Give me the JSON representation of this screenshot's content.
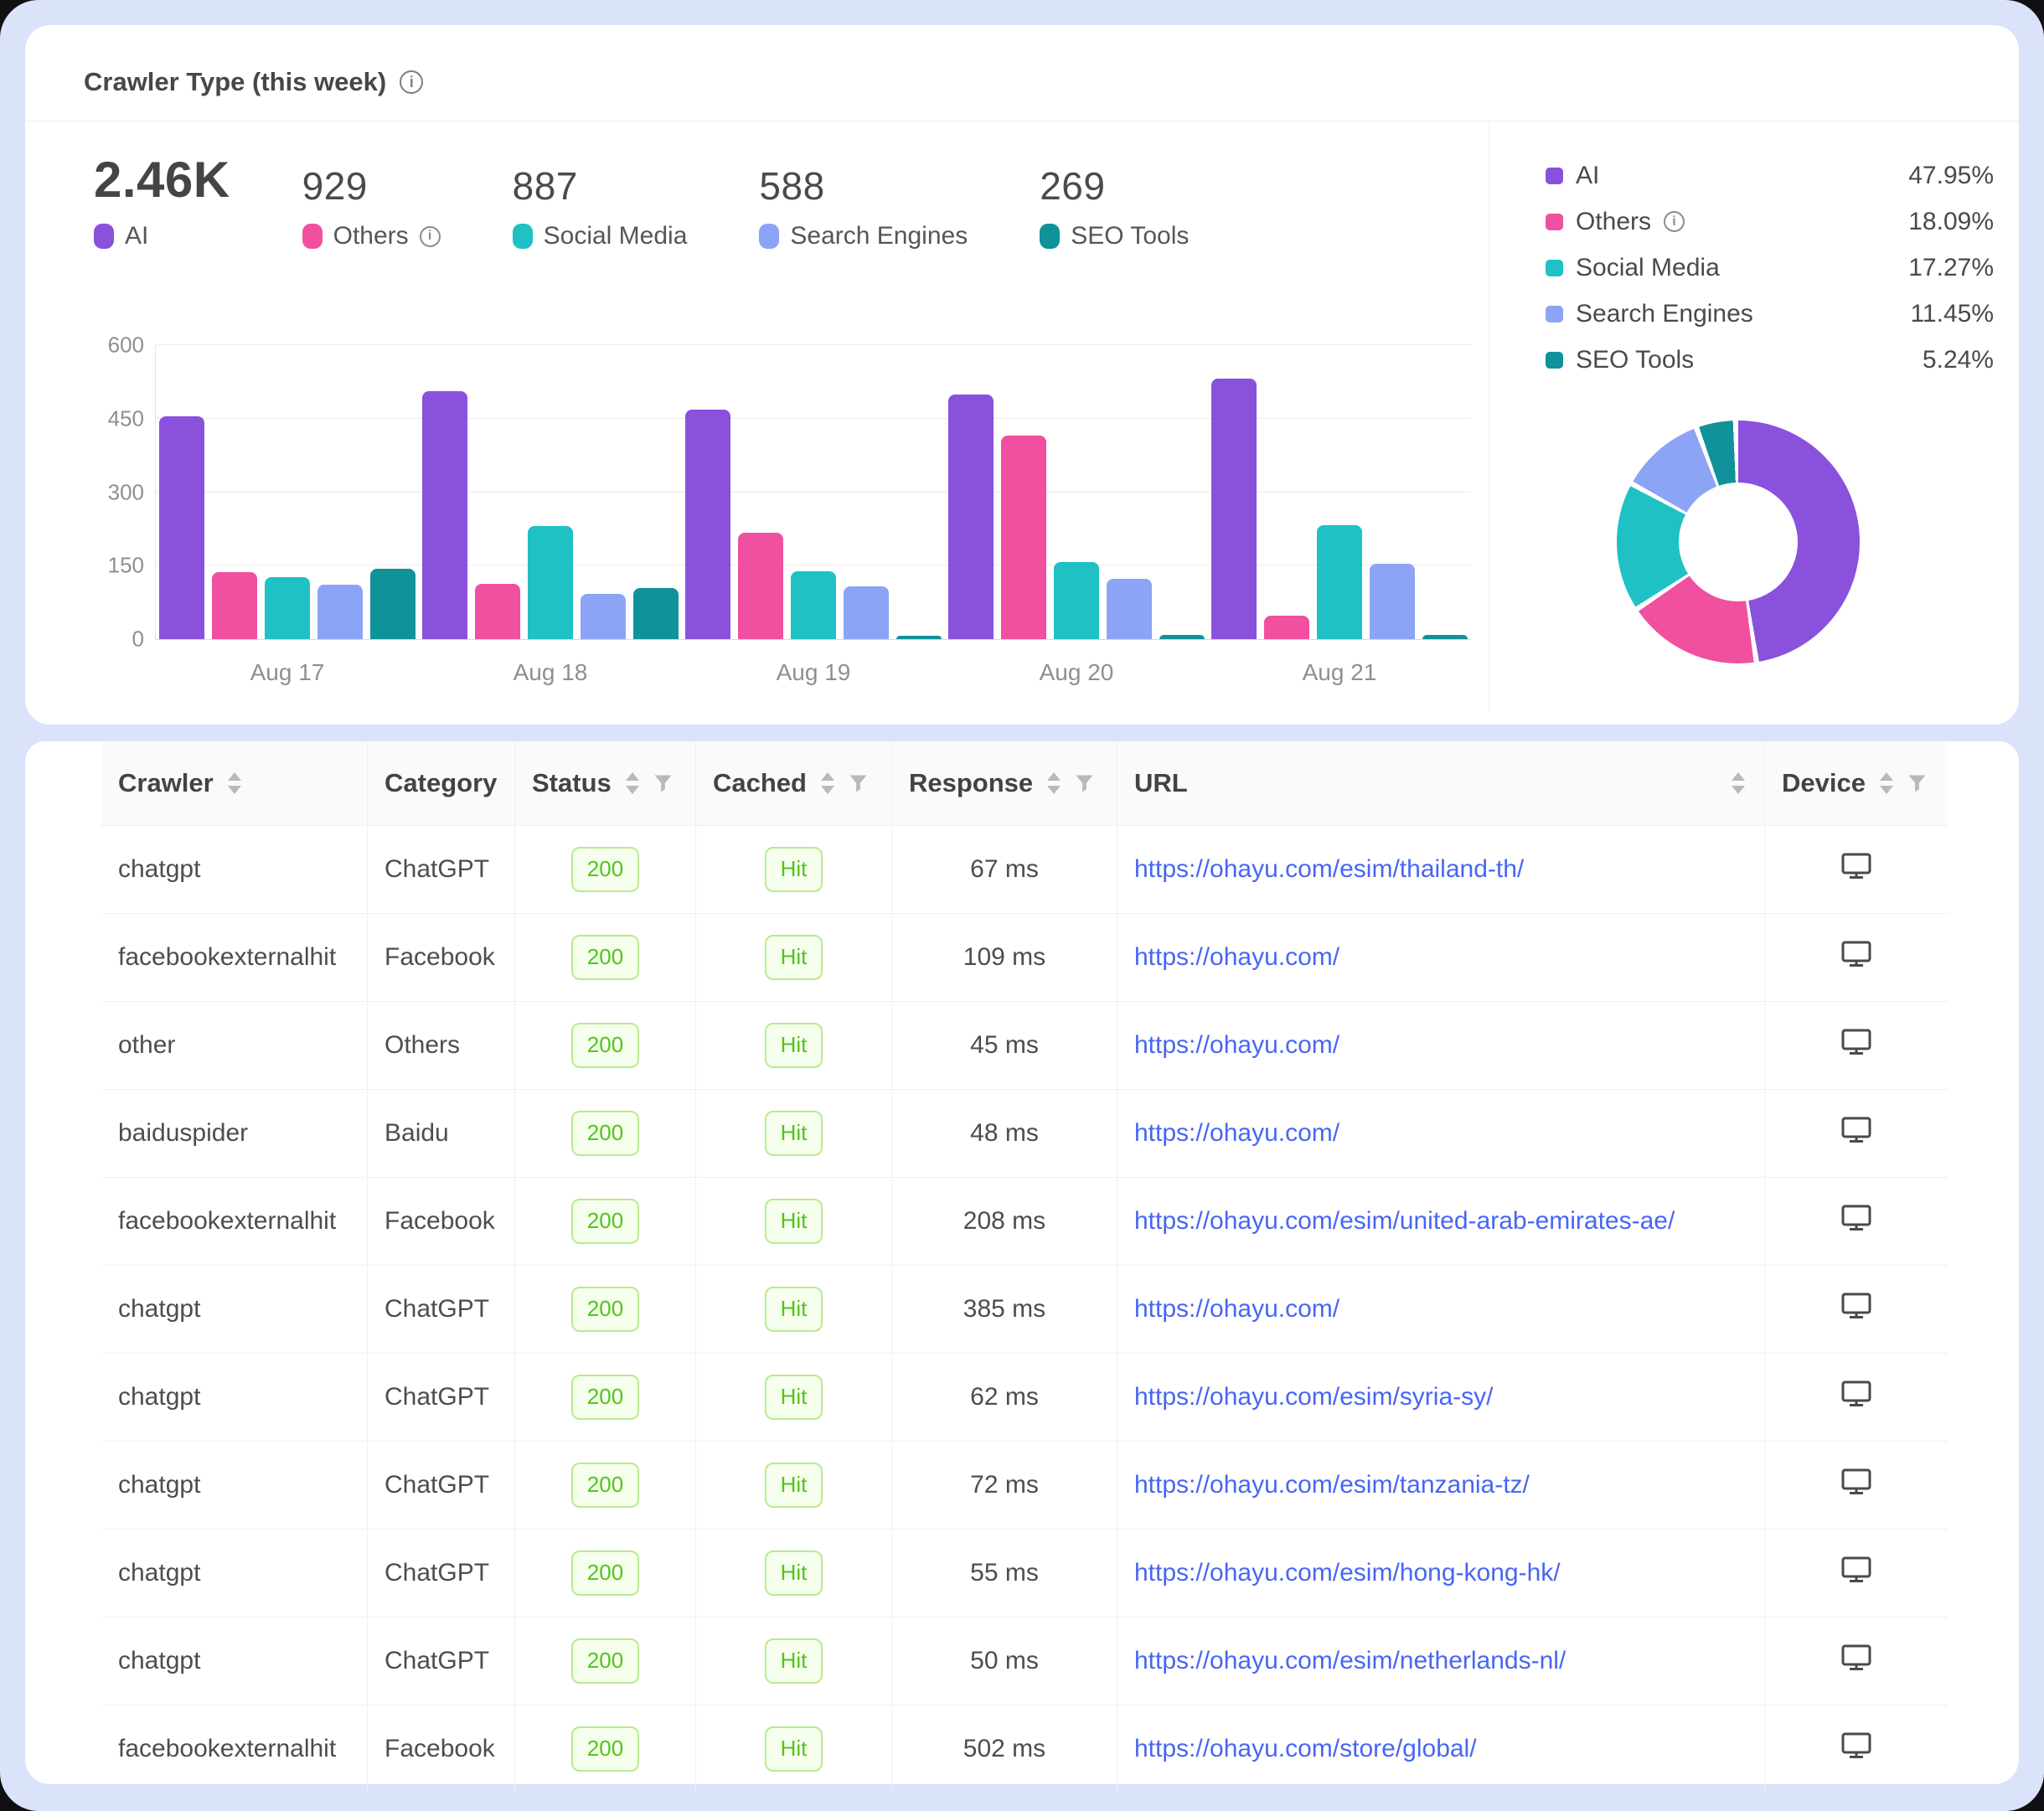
{
  "header": {
    "title": "Crawler Type (this week)"
  },
  "colors": {
    "background": "#dbe3fb",
    "card": "#ffffff",
    "link": "#4766f4",
    "badge_text": "#52c41a",
    "badge_bg": "#f6ffed",
    "badge_border": "#b7eb8f",
    "ai": "#8a51dd",
    "others": "#f0509f",
    "social_media": "#1fc1c4",
    "search_engines": "#8ca4f5",
    "seo_tools": "#10929a"
  },
  "stats": [
    {
      "value": "2.46K",
      "label": "AI",
      "color": "#8a51dd",
      "info": false,
      "primary": true
    },
    {
      "value": "929",
      "label": "Others",
      "color": "#f0509f",
      "info": true,
      "primary": false
    },
    {
      "value": "887",
      "label": "Social Media",
      "color": "#1fc1c4",
      "info": false,
      "primary": false
    },
    {
      "value": "588",
      "label": "Search Engines",
      "color": "#8ca4f5",
      "info": false,
      "primary": false
    },
    {
      "value": "269",
      "label": "SEO Tools",
      "color": "#10929a",
      "info": false,
      "primary": false
    }
  ],
  "chart_data": [
    {
      "type": "bar",
      "title": "Crawler Type (this week)",
      "categories": [
        "Aug 17",
        "Aug 18",
        "Aug 19",
        "Aug 20",
        "Aug 21"
      ],
      "series": [
        {
          "name": "AI",
          "color": "#8a51dd",
          "values": [
            455,
            506,
            468,
            500,
            531
          ]
        },
        {
          "name": "Others",
          "color": "#f0509f",
          "values": [
            136,
            113,
            217,
            415,
            48
          ]
        },
        {
          "name": "Social Media",
          "color": "#1fc1c4",
          "values": [
            127,
            231,
            139,
            157,
            233
          ]
        },
        {
          "name": "Search Engines",
          "color": "#8ca4f5",
          "values": [
            111,
            93,
            107,
            123,
            154
          ]
        },
        {
          "name": "SEO Tools",
          "color": "#10929a",
          "values": [
            144,
            104,
            3,
            9,
            9
          ]
        }
      ],
      "xlabel": "",
      "ylabel": "",
      "ylim": [
        0,
        600
      ],
      "yticks": [
        0,
        150,
        300,
        450,
        600
      ],
      "grid": true,
      "legend_position": "top"
    },
    {
      "type": "pie",
      "donut": true,
      "labels": [
        "AI",
        "Others",
        "Social Media",
        "Search Engines",
        "SEO Tools"
      ],
      "values": [
        47.95,
        18.09,
        17.27,
        11.45,
        5.24
      ],
      "colors": [
        "#8a51dd",
        "#f0509f",
        "#1fc1c4",
        "#8ca4f5",
        "#10929a"
      ],
      "unit": "%",
      "legend_position": "right"
    }
  ],
  "side_legend": [
    {
      "label": "AI",
      "pct": "47.95%",
      "color": "#8a51dd",
      "info": false
    },
    {
      "label": "Others",
      "pct": "18.09%",
      "color": "#f0509f",
      "info": true
    },
    {
      "label": "Social Media",
      "pct": "17.27%",
      "color": "#1fc1c4",
      "info": false
    },
    {
      "label": "Search Engines",
      "pct": "11.45%",
      "color": "#8ca4f5",
      "info": false
    },
    {
      "label": "SEO Tools",
      "pct": "5.24%",
      "color": "#10929a",
      "info": false
    }
  ],
  "table": {
    "columns": [
      {
        "label": "Crawler",
        "sorter": true,
        "filter": false,
        "align": "left"
      },
      {
        "label": "Category",
        "sorter": false,
        "filter": false,
        "align": "left"
      },
      {
        "label": "Status",
        "sorter": true,
        "filter": true,
        "align": "center"
      },
      {
        "label": "Cached",
        "sorter": true,
        "filter": true,
        "align": "center"
      },
      {
        "label": "Response",
        "sorter": true,
        "filter": true,
        "align": "center"
      },
      {
        "label": "URL",
        "sorter": true,
        "filter": false,
        "align": "left",
        "sorter_at_right": true
      },
      {
        "label": "Device",
        "sorter": true,
        "filter": true,
        "align": "center"
      }
    ],
    "rows": [
      {
        "crawler": "chatgpt",
        "category": "ChatGPT",
        "status": "200",
        "cached": "Hit",
        "response": "67 ms",
        "url": "https://ohayu.com/esim/thailand-th/",
        "device": "desktop"
      },
      {
        "crawler": "facebookexternalhit",
        "category": "Facebook",
        "status": "200",
        "cached": "Hit",
        "response": "109 ms",
        "url": "https://ohayu.com/",
        "device": "desktop"
      },
      {
        "crawler": "other",
        "category": "Others",
        "status": "200",
        "cached": "Hit",
        "response": "45 ms",
        "url": "https://ohayu.com/",
        "device": "desktop"
      },
      {
        "crawler": "baiduspider",
        "category": "Baidu",
        "status": "200",
        "cached": "Hit",
        "response": "48 ms",
        "url": "https://ohayu.com/",
        "device": "desktop"
      },
      {
        "crawler": "facebookexternalhit",
        "category": "Facebook",
        "status": "200",
        "cached": "Hit",
        "response": "208 ms",
        "url": "https://ohayu.com/esim/united-arab-emirates-ae/",
        "device": "desktop"
      },
      {
        "crawler": "chatgpt",
        "category": "ChatGPT",
        "status": "200",
        "cached": "Hit",
        "response": "385 ms",
        "url": "https://ohayu.com/",
        "device": "desktop"
      },
      {
        "crawler": "chatgpt",
        "category": "ChatGPT",
        "status": "200",
        "cached": "Hit",
        "response": "62 ms",
        "url": "https://ohayu.com/esim/syria-sy/",
        "device": "desktop"
      },
      {
        "crawler": "chatgpt",
        "category": "ChatGPT",
        "status": "200",
        "cached": "Hit",
        "response": "72 ms",
        "url": "https://ohayu.com/esim/tanzania-tz/",
        "device": "desktop"
      },
      {
        "crawler": "chatgpt",
        "category": "ChatGPT",
        "status": "200",
        "cached": "Hit",
        "response": "55 ms",
        "url": "https://ohayu.com/esim/hong-kong-hk/",
        "device": "desktop"
      },
      {
        "crawler": "chatgpt",
        "category": "ChatGPT",
        "status": "200",
        "cached": "Hit",
        "response": "50 ms",
        "url": "https://ohayu.com/esim/netherlands-nl/",
        "device": "desktop"
      },
      {
        "crawler": "facebookexternalhit",
        "category": "Facebook",
        "status": "200",
        "cached": "Hit",
        "response": "502 ms",
        "url": "https://ohayu.com/store/global/",
        "device": "desktop"
      }
    ]
  }
}
